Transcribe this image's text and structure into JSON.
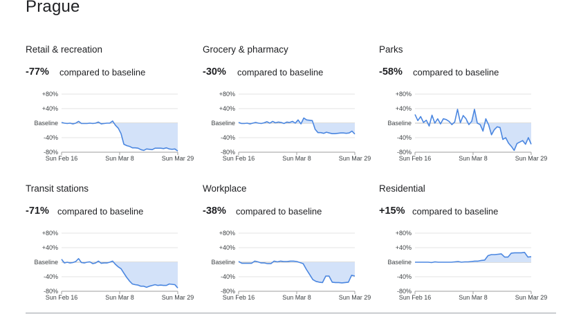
{
  "city": "Prague",
  "comparison_text": "compared to baseline",
  "colors": {
    "line": "#4a86e0",
    "fill": "#d3e2f9",
    "grid": "#e3e3e3"
  },
  "chart_data": [
    {
      "type": "area",
      "title": "Retail & recreation",
      "change": "-77%",
      "yticks": [
        "+80%",
        "+40%",
        "Baseline",
        "-40%",
        "-80%"
      ],
      "xticks": [
        "Sun Feb 16",
        "Sun Mar 8",
        "Sun Mar 29"
      ],
      "ylim": [
        -80,
        80
      ],
      "values": [
        2,
        0,
        -1,
        0,
        -2,
        0,
        5,
        -1,
        -1,
        -1,
        0,
        -1,
        0,
        3,
        -2,
        -1,
        0,
        0,
        6,
        -6,
        -14,
        -29,
        -58,
        -62,
        -64,
        -68,
        -68,
        -69,
        -73,
        -75,
        -71,
        -72,
        -73,
        -69,
        -69,
        -69,
        -70,
        -68,
        -71,
        -72,
        -71,
        -77
      ],
      "grid": true
    },
    {
      "type": "area",
      "title": "Grocery & pharmacy",
      "change": "-30%",
      "yticks": [
        "+80%",
        "+40%",
        "Baseline",
        "-40%",
        "-80%"
      ],
      "xticks": [
        "Sun Feb 16",
        "Sun Mar 8",
        "Sun Mar 29"
      ],
      "ylim": [
        -80,
        80
      ],
      "values": [
        2,
        -1,
        -1,
        0,
        -2,
        0,
        2,
        0,
        -1,
        1,
        4,
        0,
        5,
        1,
        3,
        2,
        -1,
        3,
        2,
        5,
        0,
        9,
        -2,
        14,
        9,
        8,
        7,
        -17,
        -26,
        -26,
        -28,
        -25,
        -27,
        -29,
        -29,
        -28,
        -27,
        -27,
        -28,
        -27,
        -22,
        -30
      ],
      "grid": true
    },
    {
      "type": "area",
      "title": "Parks",
      "change": "-58%",
      "yticks": [
        "+80%",
        "+40%",
        "Baseline",
        "-40%",
        "-80%"
      ],
      "xticks": [
        "Sun Feb 16",
        "Sun Mar 8",
        "Sun Mar 29"
      ],
      "ylim": [
        -80,
        80
      ],
      "values": [
        24,
        7,
        18,
        2,
        8,
        -8,
        22,
        0,
        12,
        -2,
        12,
        10,
        5,
        -4,
        3,
        38,
        1,
        21,
        12,
        -4,
        5,
        38,
        0,
        -4,
        -22,
        12,
        -5,
        -32,
        -18,
        -10,
        -12,
        -45,
        -40,
        -55,
        -64,
        -75,
        -56,
        -52,
        -48,
        -58,
        -40,
        -58
      ],
      "grid": true
    },
    {
      "type": "area",
      "title": "Transit stations",
      "change": "-71%",
      "yticks": [
        "+80%",
        "+40%",
        "Baseline",
        "-40%",
        "-80%"
      ],
      "xticks": [
        "Sun Feb 16",
        "Sun Mar 8",
        "Sun Mar 29"
      ],
      "ylim": [
        -80,
        80
      ],
      "values": [
        8,
        -2,
        0,
        -2,
        -1,
        2,
        10,
        -1,
        -2,
        0,
        1,
        -4,
        -2,
        3,
        -3,
        -2,
        -2,
        0,
        3,
        -6,
        -13,
        -18,
        -30,
        -42,
        -52,
        -60,
        -62,
        -63,
        -66,
        -66,
        -69,
        -66,
        -64,
        -62,
        -64,
        -63,
        -64,
        -64,
        -60,
        -61,
        -62,
        -71
      ],
      "grid": true
    },
    {
      "type": "area",
      "title": "Workplace",
      "change": "-38%",
      "yticks": [
        "+80%",
        "+40%",
        "Baseline",
        "-40%",
        "-80%"
      ],
      "xticks": [
        "Sun Feb 16",
        "Sun Mar 8",
        "Sun Mar 29"
      ],
      "ylim": [
        -80,
        80
      ],
      "values": [
        2,
        -3,
        -3,
        -3,
        -3,
        3,
        1,
        -2,
        -2,
        -4,
        -4,
        3,
        1,
        3,
        2,
        2,
        3,
        3,
        2,
        -1,
        -4,
        -20,
        -34,
        -48,
        -53,
        -55,
        -56,
        -38,
        -38,
        -55,
        -56,
        -56,
        -57,
        -56,
        -55,
        -36,
        -38
      ],
      "grid": true
    },
    {
      "type": "area",
      "title": "Residential",
      "change": "+15%",
      "yticks": [
        "+80%",
        "+40%",
        "Baseline",
        "-40%",
        "-80%"
      ],
      "xticks": [
        "Sun Feb 16",
        "Sun Mar 8",
        "Sun Mar 29"
      ],
      "ylim": [
        -80,
        80
      ],
      "values": [
        0,
        0,
        0,
        0,
        0,
        -1,
        1,
        0,
        0,
        0,
        0,
        0,
        1,
        2,
        0,
        1,
        1,
        2,
        3,
        3,
        5,
        6,
        18,
        21,
        21,
        22,
        23,
        14,
        14,
        25,
        26,
        26,
        26,
        27,
        14,
        15
      ],
      "grid": true
    }
  ]
}
